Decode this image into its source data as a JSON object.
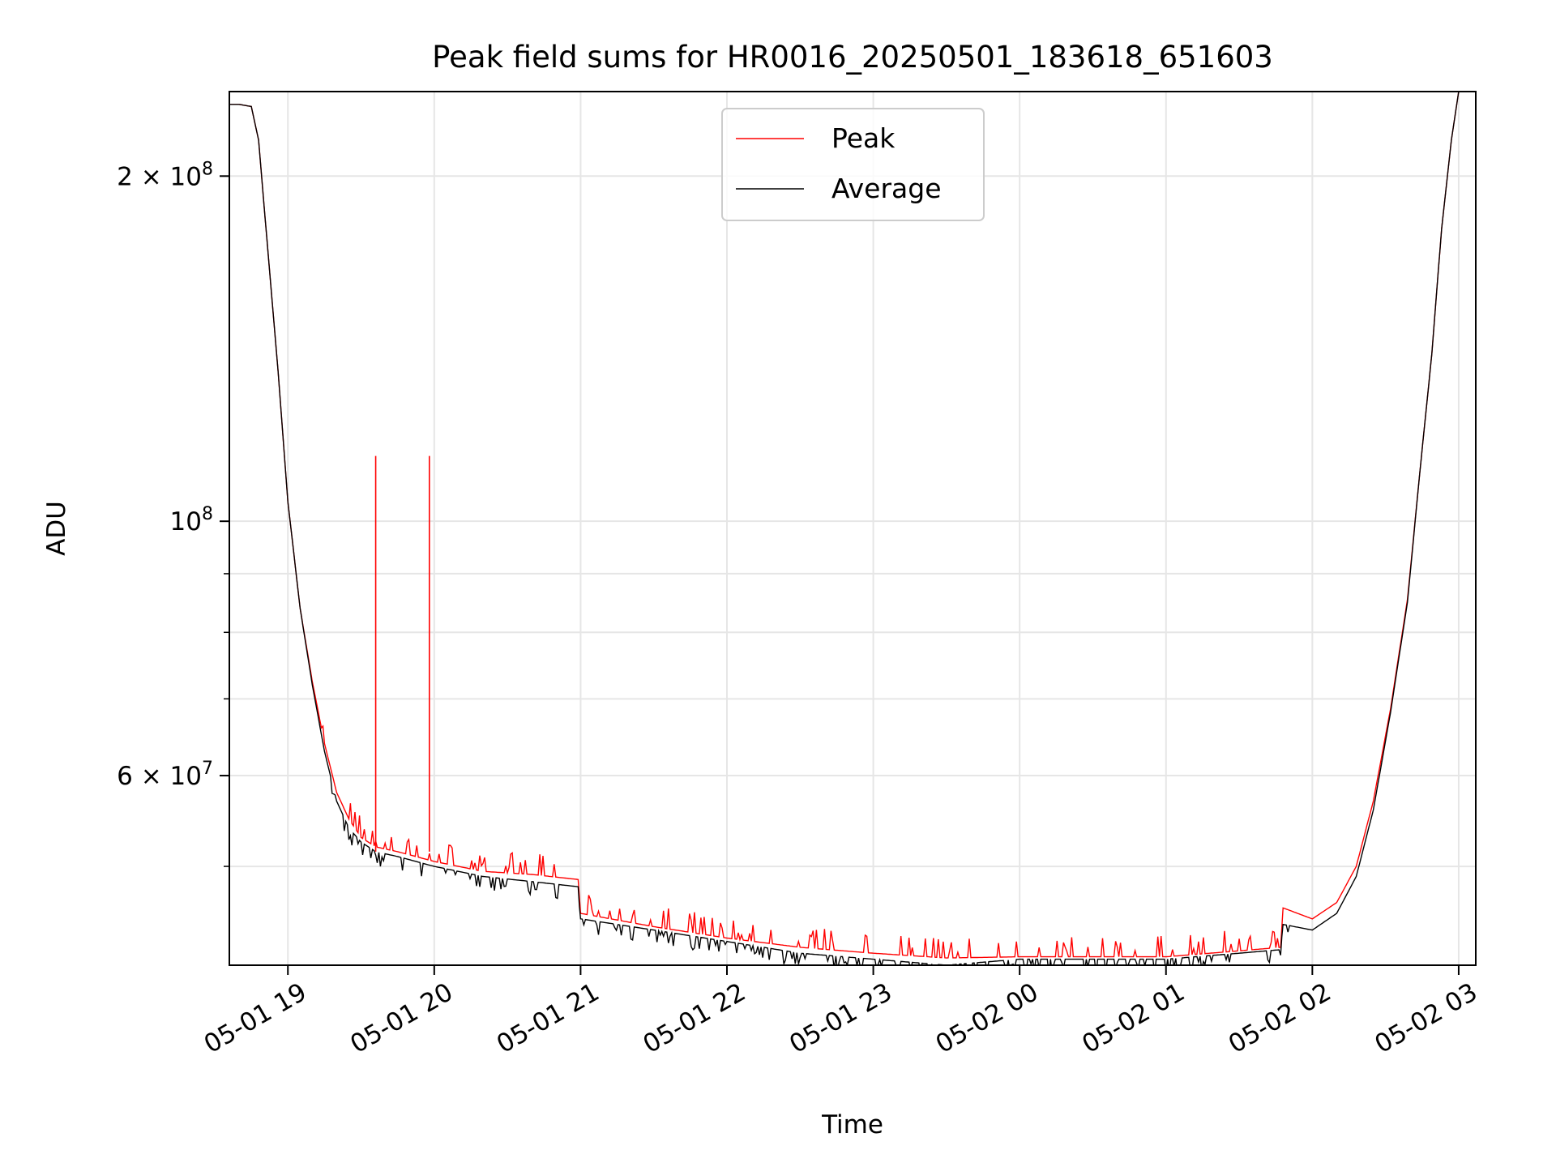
{
  "chart_data": {
    "type": "line",
    "title": "Peak field sums for HR0016_20250501_183618_651603",
    "xlabel": "Time",
    "ylabel": "ADU",
    "y_scale": "log",
    "xlim": [
      "2025-05-01T18:36",
      "2025-05-02T03:07"
    ],
    "ylim": [
      41000000,
      237000000
    ],
    "grid": true,
    "legend": {
      "placement": "top-center",
      "entries": [
        "Peak",
        "Average"
      ]
    },
    "x_ticks": [
      "05-01 19",
      "05-01 20",
      "05-01 21",
      "05-01 22",
      "05-01 23",
      "05-02 00",
      "05-02 01",
      "05-02 02",
      "05-02 03"
    ],
    "y_major_ticks": [
      {
        "value": 200000000,
        "mantissa": "2",
        "base": "10",
        "exp": "8"
      },
      {
        "value": 100000000,
        "mantissa": "",
        "base": "10",
        "exp": "8"
      },
      {
        "value": 60000000,
        "mantissa": "6",
        "base": "10",
        "exp": "7"
      }
    ],
    "y_minor_ticks": [
      50000000,
      70000000,
      80000000,
      90000000
    ],
    "x_tick_values": [
      "2025-05-01T19:00",
      "2025-05-01T20:00",
      "2025-05-01T21:00",
      "2025-05-01T22:00",
      "2025-05-01T23:00",
      "2025-05-02T00:00",
      "2025-05-02T01:00",
      "2025-05-02T02:00",
      "2025-05-02T03:00"
    ],
    "series": [
      {
        "name": "Average",
        "color": "#000000",
        "x": [
          "2025-05-01T18:36",
          "2025-05-01T18:40",
          "2025-05-01T18:45",
          "2025-05-01T18:48",
          "2025-05-01T18:52",
          "2025-05-01T18:56",
          "2025-05-01T19:00",
          "2025-05-01T19:05",
          "2025-05-01T19:10",
          "2025-05-01T19:15",
          "2025-05-01T19:20",
          "2025-05-01T19:25",
          "2025-05-01T19:30",
          "2025-05-01T19:36",
          "2025-05-01T19:45",
          "2025-05-01T20:00",
          "2025-05-01T20:20",
          "2025-05-01T20:40",
          "2025-05-01T20:59",
          "2025-05-01T21:00",
          "2025-05-01T21:30",
          "2025-05-01T22:00",
          "2025-05-01T22:30",
          "2025-05-01T23:00",
          "2025-05-01T23:30",
          "2025-05-02T00:00",
          "2025-05-02T00:30",
          "2025-05-02T01:00",
          "2025-05-02T01:30",
          "2025-05-02T01:47",
          "2025-05-02T01:48",
          "2025-05-02T02:00",
          "2025-05-02T02:10",
          "2025-05-02T02:18",
          "2025-05-02T02:25",
          "2025-05-02T02:32",
          "2025-05-02T02:39",
          "2025-05-02T02:44",
          "2025-05-02T02:49",
          "2025-05-02T02:53",
          "2025-05-02T02:57",
          "2025-05-02T03:00"
        ],
        "values": [
          231000000,
          231000000,
          230000000,
          215000000,
          170000000,
          135000000,
          104000000,
          84000000,
          72000000,
          63000000,
          57000000,
          54000000,
          52500000,
          51500000,
          51000000,
          50000000,
          49000000,
          48500000,
          48000000,
          45000000,
          44000000,
          43000000,
          42000000,
          41500000,
          41000000,
          41500000,
          41500000,
          41500000,
          42000000,
          42300000,
          44500000,
          44000000,
          45500000,
          49000000,
          56000000,
          68000000,
          85000000,
          110000000,
          140000000,
          180000000,
          215000000,
          237000000
        ]
      },
      {
        "name": "Peak",
        "color": "#ff0000",
        "x": [
          "2025-05-01T18:36",
          "2025-05-01T18:40",
          "2025-05-01T18:45",
          "2025-05-01T18:48",
          "2025-05-01T18:52",
          "2025-05-01T18:56",
          "2025-05-01T19:00",
          "2025-05-01T19:05",
          "2025-05-01T19:10",
          "2025-05-01T19:15",
          "2025-05-01T19:20",
          "2025-05-01T19:25",
          "2025-05-01T19:30",
          "2025-05-01T19:36",
          "2025-05-01T19:45",
          "2025-05-01T20:00",
          "2025-05-01T20:20",
          "2025-05-01T20:40",
          "2025-05-01T20:59",
          "2025-05-01T21:00",
          "2025-05-01T21:30",
          "2025-05-01T22:00",
          "2025-05-01T22:30",
          "2025-05-01T23:00",
          "2025-05-01T23:30",
          "2025-05-02T00:00",
          "2025-05-02T00:30",
          "2025-05-02T01:00",
          "2025-05-02T01:30",
          "2025-05-02T01:47",
          "2025-05-02T01:48",
          "2025-05-02T02:00",
          "2025-05-02T02:10",
          "2025-05-02T02:18",
          "2025-05-02T02:25",
          "2025-05-02T02:32",
          "2025-05-02T02:39",
          "2025-05-02T02:44",
          "2025-05-02T02:49",
          "2025-05-02T02:53",
          "2025-05-02T02:57",
          "2025-05-02T03:00"
        ],
        "values": [
          231000000,
          231000000,
          230000000,
          215000000,
          170000000,
          135000000,
          104000000,
          84000000,
          72500000,
          64000000,
          58000000,
          55000000,
          53000000,
          52000000,
          51500000,
          50500000,
          49500000,
          49200000,
          48700000,
          45500000,
          44300000,
          43300000,
          42500000,
          42000000,
          41600000,
          41700000,
          41700000,
          41700000,
          42200000,
          42500000,
          46000000,
          45000000,
          46500000,
          50000000,
          57000000,
          68500000,
          85500000,
          110000000,
          140000000,
          180000000,
          215000000,
          237000000
        ],
        "spikes": [
          {
            "x": "2025-05-01T19:36",
            "value": 114000000
          },
          {
            "x": "2025-05-01T19:58",
            "value": 114000000
          }
        ]
      }
    ]
  }
}
